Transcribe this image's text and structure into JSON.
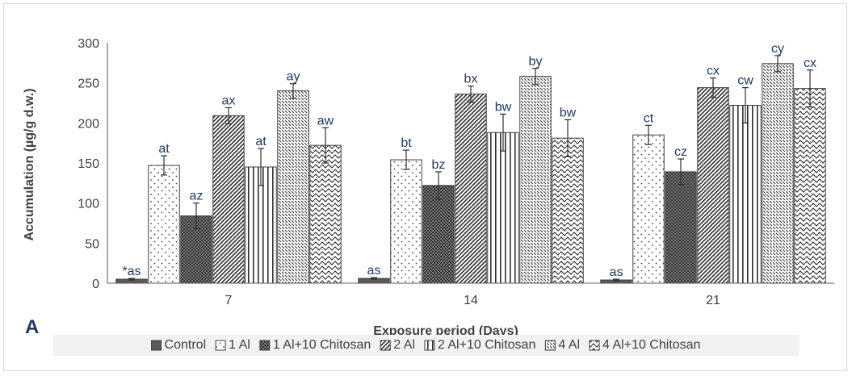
{
  "panel_label": "A",
  "chart_data": {
    "type": "bar",
    "title": "",
    "xlabel": "Exposure period (Days)",
    "ylabel": "Accumulation (µg/g d.w.)",
    "ylim": [
      0,
      300
    ],
    "yticks": [
      0,
      50,
      100,
      150,
      200,
      250,
      300
    ],
    "grid": false,
    "legend_position": "bottom",
    "categories": [
      "7",
      "14",
      "21"
    ],
    "series": [
      {
        "name": "Control",
        "pattern": "solid-dark",
        "values": [
          5,
          6,
          4
        ],
        "errors": [
          1,
          1,
          1
        ],
        "labels": [
          "*as",
          "as",
          "as"
        ]
      },
      {
        "name": "1 Al",
        "pattern": "dots",
        "values": [
          147,
          154,
          185
        ],
        "errors": [
          12,
          12,
          12
        ],
        "labels": [
          "at",
          "bt",
          "ct"
        ]
      },
      {
        "name": "1 Al+10 Chitosan",
        "pattern": "dense-grid",
        "values": [
          84,
          122,
          139
        ],
        "errors": [
          16,
          17,
          16
        ],
        "labels": [
          "az",
          "bz",
          "cz"
        ]
      },
      {
        "name": "2 Al",
        "pattern": "diagonal",
        "values": [
          209,
          236,
          244
        ],
        "errors": [
          10,
          10,
          12
        ],
        "labels": [
          "ax",
          "bx",
          "cx"
        ]
      },
      {
        "name": "2 Al+10 Chitosan",
        "pattern": "vertical",
        "values": [
          145,
          188,
          222
        ],
        "errors": [
          23,
          23,
          22
        ],
        "labels": [
          "at",
          "bw",
          "cw"
        ]
      },
      {
        "name": "4 Al",
        "pattern": "dashes",
        "values": [
          240,
          258,
          274
        ],
        "errors": [
          9,
          10,
          10
        ],
        "labels": [
          "ay",
          "by",
          "cy"
        ]
      },
      {
        "name": "4 Al+10 Chitosan",
        "pattern": "waves",
        "values": [
          172,
          181,
          243
        ],
        "errors": [
          22,
          23,
          23
        ],
        "labels": [
          "aw",
          "bw",
          "cx"
        ]
      }
    ],
    "colors": {
      "bar_outline": "#404040",
      "control_fill": "#595959",
      "letter_color": "#1f3864",
      "axis": "#595959",
      "text": "#404040"
    }
  }
}
